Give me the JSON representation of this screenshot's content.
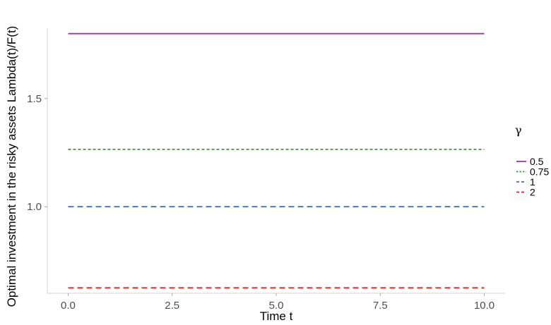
{
  "chart_data": {
    "type": "line",
    "xlabel": "Time t",
    "ylabel": "Optimal investment in the risky assets Lambda(t)/F(t)",
    "xlim": [
      -0.5,
      10.5
    ],
    "ylim": [
      0.6,
      1.825
    ],
    "x_ticks": [
      {
        "value": 0,
        "label": "0.0"
      },
      {
        "value": 2.5,
        "label": "2.5"
      },
      {
        "value": 5,
        "label": "5.0"
      },
      {
        "value": 7.5,
        "label": "7.5"
      },
      {
        "value": 10,
        "label": "10.0"
      }
    ],
    "y_ticks": [
      {
        "value": 1.0,
        "label": "1.0"
      },
      {
        "value": 1.5,
        "label": "1.5"
      }
    ],
    "grid": false,
    "legend": {
      "title": "γ",
      "position": "right"
    },
    "x": [
      0,
      10
    ],
    "series": [
      {
        "name": "0.5",
        "values": [
          1.8,
          1.8
        ],
        "color": "#9b38b0",
        "dash": "solid"
      },
      {
        "name": "0.75",
        "values": [
          1.265,
          1.265
        ],
        "color": "#3c9b3c",
        "dash": "dotted"
      },
      {
        "name": "1",
        "values": [
          1.0,
          1.0
        ],
        "color": "#3a75b5",
        "dash": "dashed"
      },
      {
        "name": "2",
        "values": [
          0.625,
          0.625
        ],
        "color": "#e0262b",
        "dash": "dashed"
      }
    ]
  }
}
